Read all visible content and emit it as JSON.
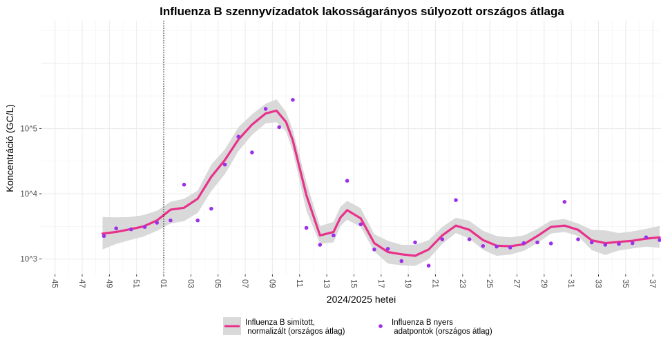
{
  "chart_data": {
    "type": "line",
    "title": "Influenza B szennyvízadatok lakosságarányos súlyozott országos átlaga",
    "xlabel": "2024/2025 hetei",
    "ylabel": "Koncentráció (GC/L)",
    "y_scale": "log10",
    "ylim": [
      580,
      4500000
    ],
    "y_ticks": [
      {
        "value": 1000,
        "label": "10^3"
      },
      {
        "value": 10000,
        "label": "10^4"
      },
      {
        "value": 100000,
        "label": "10^5"
      }
    ],
    "x_ticks": [
      "45",
      "47",
      "49",
      "51",
      "01",
      "03",
      "05",
      "07",
      "09",
      "11",
      "13",
      "15",
      "17",
      "19",
      "21",
      "23",
      "25",
      "27",
      "29",
      "31",
      "33",
      "35",
      "37"
    ],
    "x_tick_weeks": [
      45,
      47,
      49,
      51,
      53,
      55,
      57,
      59,
      61,
      63,
      65,
      67,
      69,
      71,
      73,
      75,
      77,
      79,
      81,
      83,
      85,
      87,
      89
    ],
    "xlim": [
      44,
      89.6
    ],
    "year_boundary_week": 53,
    "grid": true,
    "legend_position": "bottom",
    "series": [
      {
        "name": "Influenza B simított,\n normalizált (országos átlag)",
        "kind": "smooth",
        "color": "#e8318a",
        "band_color": "#d9d9d9",
        "x": [
          48.5,
          49.5,
          50.5,
          51.5,
          52.5,
          53.5,
          54.5,
          55.5,
          56.5,
          57.5,
          58.5,
          59.5,
          60.5,
          61.3,
          62,
          62.5,
          63.5,
          64.5,
          65.5,
          66,
          66.5,
          67.5,
          68.5,
          69.5,
          70.5,
          71.5,
          72.5,
          73.5,
          74.5,
          75.5,
          76.5,
          77.5,
          78.5,
          79.5,
          80.5,
          81.5,
          82.5,
          83.5,
          84.5,
          85.5,
          86.5,
          87.5,
          88.5,
          89.5
        ],
        "y": [
          2450,
          2600,
          2850,
          3150,
          3900,
          5700,
          6100,
          8400,
          18200,
          33000,
          68000,
          115000,
          170000,
          188000,
          126000,
          66000,
          9500,
          2300,
          2600,
          4300,
          5600,
          4200,
          1750,
          1280,
          1180,
          1120,
          1400,
          2300,
          3250,
          2800,
          1950,
          1600,
          1570,
          1680,
          2250,
          3100,
          3250,
          2800,
          1930,
          1750,
          1830,
          1900,
          2050,
          2150
        ],
        "lower": [
          1400,
          1700,
          1950,
          2200,
          2700,
          3500,
          3800,
          5100,
          11000,
          20000,
          45000,
          80000,
          120000,
          125000,
          90000,
          45000,
          5500,
          1700,
          1800,
          3200,
          4000,
          3100,
          1300,
          850,
          800,
          780,
          1000,
          1700,
          2500,
          2050,
          1380,
          1120,
          1170,
          1330,
          1750,
          2450,
          2600,
          2250,
          1370,
          1150,
          1350,
          1450,
          1550,
          1480
        ],
        "upper": [
          4400,
          4350,
          4400,
          4700,
          5500,
          7500,
          8400,
          11200,
          28000,
          48000,
          105000,
          165000,
          240000,
          280000,
          180000,
          95000,
          15000,
          3200,
          3700,
          6300,
          7800,
          6000,
          2400,
          1900,
          1650,
          1650,
          1950,
          3100,
          4300,
          3850,
          2700,
          2250,
          2150,
          2300,
          2900,
          3900,
          4100,
          3500,
          2800,
          2750,
          2500,
          2650,
          2900,
          3200
        ]
      },
      {
        "name": "Influenza B nyers\n adatpontok (országos átlag)",
        "kind": "points",
        "color": "#9b30e8",
        "x": [
          48.6,
          49.5,
          50.6,
          51.6,
          52.5,
          53.5,
          54.5,
          55.5,
          56.5,
          57.5,
          58.5,
          59.5,
          60.5,
          61.5,
          62.5,
          63.5,
          64.5,
          65.5,
          66.5,
          67.5,
          68.5,
          69.5,
          70.5,
          71.5,
          72.5,
          73.5,
          74.5,
          75.5,
          76.5,
          77.5,
          78.5,
          79.5,
          80.5,
          81.5,
          82.5,
          83.5,
          84.5,
          85.5,
          86.5,
          87.5,
          88.5,
          89.5
        ],
        "y": [
          2250,
          2950,
          2850,
          3100,
          3600,
          3900,
          13800,
          3900,
          5900,
          28000,
          75000,
          43000,
          200000,
          105000,
          275000,
          3000,
          1650,
          2300,
          15800,
          3400,
          1400,
          1430,
          930,
          1800,
          790,
          2000,
          8000,
          2000,
          1580,
          1550,
          1500,
          1750,
          1800,
          1730,
          7500,
          2000,
          1800,
          1650,
          1700,
          1750,
          2150,
          1950
        ]
      }
    ]
  }
}
